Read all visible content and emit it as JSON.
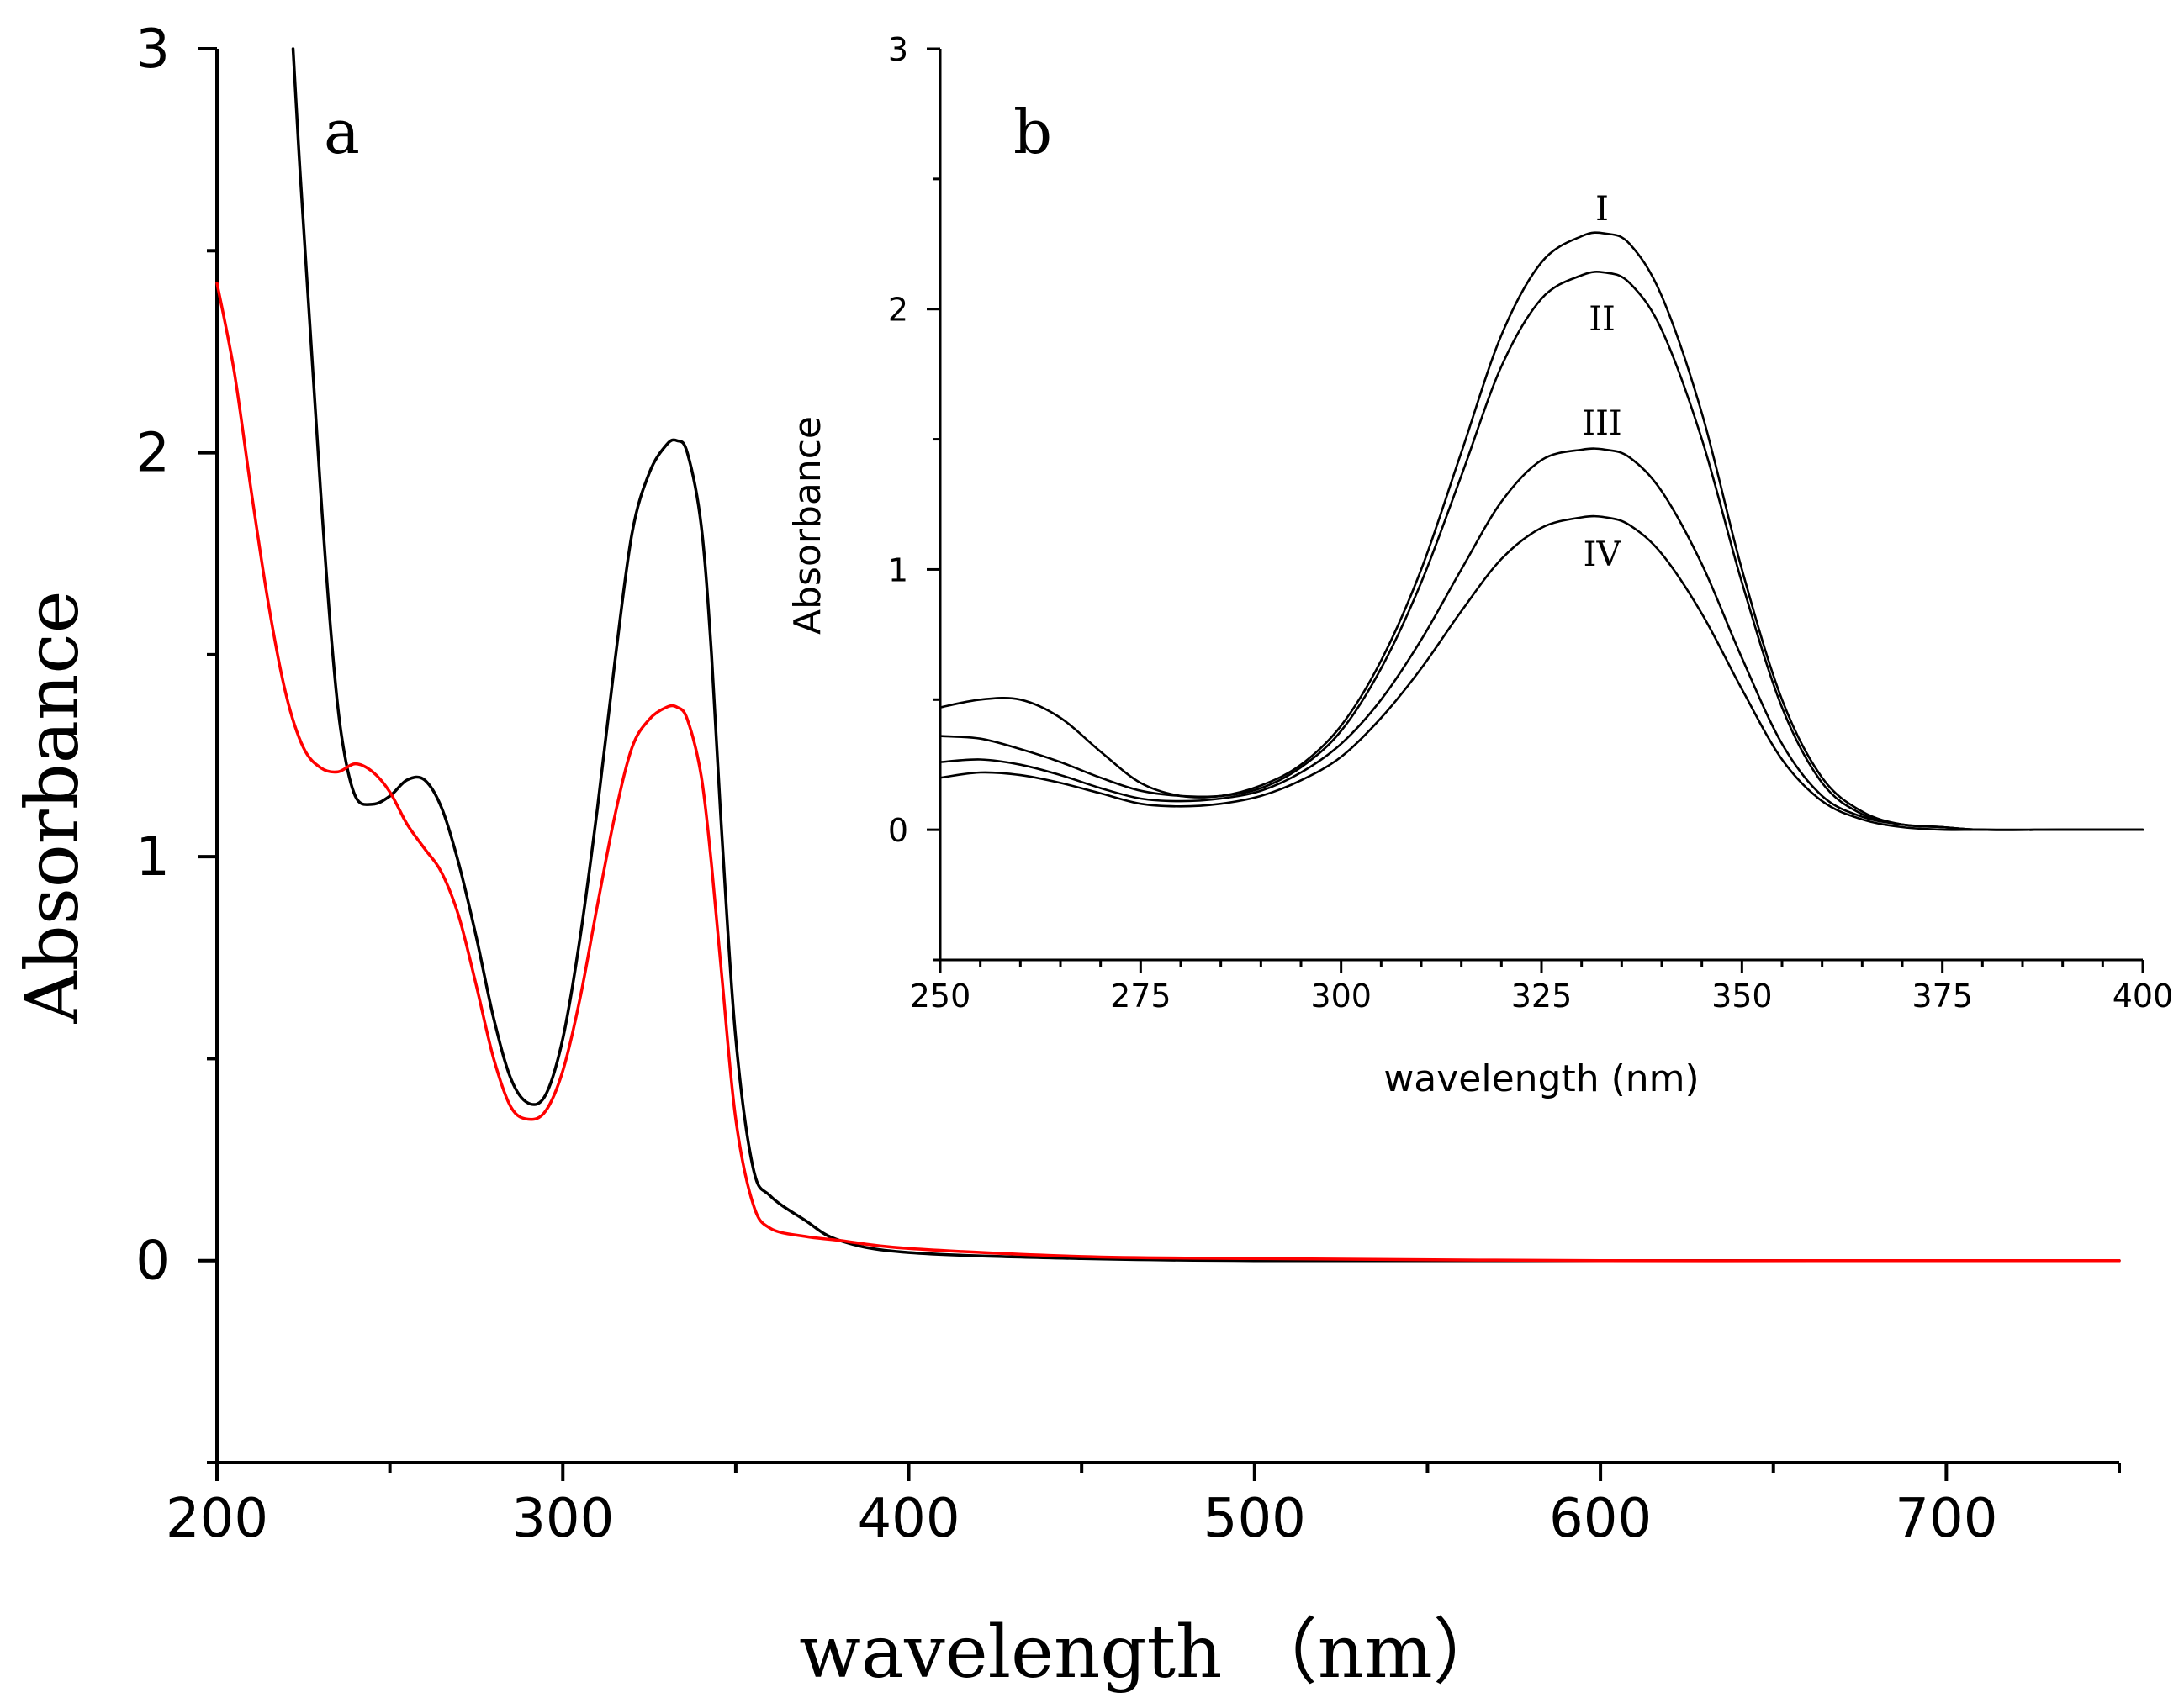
{
  "chart_data": [
    {
      "panel": "a",
      "type": "line",
      "xlabel": "wavelength （nm）",
      "ylabel": "Absorbance",
      "xlim": [
        200,
        750
      ],
      "ylim": [
        -0.5,
        3
      ],
      "xticks": [
        200,
        300,
        400,
        500,
        600,
        700
      ],
      "yticks": [
        0,
        1,
        2,
        3
      ],
      "grid": false,
      "series": [
        {
          "name": "black",
          "color": "#000000",
          "x": [
            222,
            224,
            227,
            230,
            233,
            236,
            240,
            245,
            250,
            255,
            260,
            265,
            270,
            275,
            280,
            285,
            290,
            295,
            300,
            305,
            310,
            315,
            320,
            325,
            330,
            333,
            336,
            340,
            343,
            346,
            350,
            355,
            360,
            370,
            380,
            400,
            450,
            500,
            600,
            700,
            750
          ],
          "y": [
            3.0,
            2.7,
            2.3,
            1.9,
            1.55,
            1.3,
            1.15,
            1.13,
            1.15,
            1.19,
            1.19,
            1.12,
            0.98,
            0.8,
            0.6,
            0.45,
            0.39,
            0.41,
            0.55,
            0.8,
            1.12,
            1.48,
            1.8,
            1.95,
            2.02,
            2.03,
            2.0,
            1.82,
            1.5,
            1.05,
            0.55,
            0.23,
            0.16,
            0.1,
            0.05,
            0.02,
            0.005,
            0.0,
            0.0,
            0.0,
            0.0
          ]
        },
        {
          "name": "red",
          "color": "#ff0000",
          "x": [
            200,
            205,
            210,
            215,
            220,
            225,
            230,
            235,
            240,
            245,
            250,
            255,
            260,
            265,
            270,
            275,
            280,
            285,
            290,
            295,
            300,
            305,
            310,
            315,
            320,
            325,
            330,
            333,
            336,
            340,
            343,
            346,
            350,
            355,
            360,
            370,
            380,
            400,
            450,
            500,
            600,
            700,
            750
          ],
          "y": [
            2.42,
            2.2,
            1.9,
            1.62,
            1.4,
            1.27,
            1.22,
            1.21,
            1.23,
            1.21,
            1.16,
            1.08,
            1.02,
            0.96,
            0.85,
            0.68,
            0.5,
            0.38,
            0.35,
            0.37,
            0.47,
            0.65,
            0.88,
            1.1,
            1.27,
            1.34,
            1.37,
            1.37,
            1.34,
            1.2,
            0.98,
            0.7,
            0.35,
            0.14,
            0.08,
            0.06,
            0.05,
            0.03,
            0.01,
            0.005,
            0.0,
            0.0,
            0.0
          ]
        }
      ]
    },
    {
      "panel": "b",
      "type": "line",
      "xlabel": "wavelength (nm)",
      "ylabel": "Absorbance",
      "xlim": [
        250,
        400
      ],
      "ylim": [
        -0.5,
        3
      ],
      "xticks": [
        250,
        275,
        300,
        325,
        350,
        375,
        400
      ],
      "yticks": [
        0,
        1,
        2,
        3
      ],
      "grid": false,
      "series": [
        {
          "name": "I",
          "color": "#000000",
          "x": [
            250,
            255,
            260,
            265,
            270,
            275,
            280,
            285,
            290,
            295,
            300,
            305,
            310,
            315,
            320,
            325,
            330,
            333,
            336,
            340,
            345,
            350,
            355,
            360,
            365,
            370,
            375,
            380,
            390,
            400
          ],
          "y": [
            0.47,
            0.5,
            0.5,
            0.43,
            0.3,
            0.18,
            0.13,
            0.13,
            0.17,
            0.25,
            0.4,
            0.65,
            1.0,
            1.45,
            1.9,
            2.18,
            2.28,
            2.29,
            2.25,
            2.05,
            1.6,
            1.0,
            0.5,
            0.2,
            0.07,
            0.02,
            0.01,
            0.0,
            0.0,
            0.0
          ]
        },
        {
          "name": "II",
          "color": "#000000",
          "x": [
            250,
            255,
            260,
            265,
            270,
            275,
            280,
            285,
            290,
            295,
            300,
            305,
            310,
            315,
            320,
            325,
            330,
            333,
            336,
            340,
            345,
            350,
            355,
            360,
            365,
            370,
            375,
            380,
            390,
            400
          ],
          "y": [
            0.36,
            0.35,
            0.31,
            0.26,
            0.2,
            0.15,
            0.13,
            0.13,
            0.16,
            0.24,
            0.38,
            0.62,
            0.95,
            1.36,
            1.78,
            2.04,
            2.13,
            2.14,
            2.1,
            1.92,
            1.5,
            0.95,
            0.47,
            0.18,
            0.06,
            0.02,
            0.01,
            0.0,
            0.0,
            0.0
          ]
        },
        {
          "name": "III",
          "color": "#000000",
          "x": [
            250,
            255,
            260,
            265,
            270,
            275,
            280,
            285,
            290,
            295,
            300,
            305,
            310,
            315,
            320,
            325,
            330,
            333,
            336,
            340,
            345,
            350,
            355,
            360,
            365,
            370,
            375,
            380,
            390,
            400
          ],
          "y": [
            0.26,
            0.27,
            0.25,
            0.21,
            0.16,
            0.12,
            0.11,
            0.12,
            0.15,
            0.22,
            0.33,
            0.5,
            0.73,
            1.0,
            1.26,
            1.42,
            1.46,
            1.46,
            1.43,
            1.3,
            1.02,
            0.66,
            0.33,
            0.13,
            0.05,
            0.02,
            0.01,
            0.0,
            0.0,
            0.0
          ]
        },
        {
          "name": "IV",
          "color": "#000000",
          "x": [
            250,
            255,
            260,
            265,
            270,
            275,
            280,
            285,
            290,
            295,
            300,
            305,
            310,
            315,
            320,
            325,
            330,
            333,
            336,
            340,
            345,
            350,
            355,
            360,
            365,
            370,
            375,
            380,
            390,
            400
          ],
          "y": [
            0.2,
            0.22,
            0.21,
            0.18,
            0.14,
            0.1,
            0.09,
            0.1,
            0.13,
            0.19,
            0.28,
            0.43,
            0.62,
            0.84,
            1.04,
            1.16,
            1.2,
            1.2,
            1.17,
            1.06,
            0.83,
            0.54,
            0.27,
            0.11,
            0.04,
            0.01,
            0.0,
            0.0,
            0.0,
            0.0
          ]
        }
      ]
    }
  ]
}
